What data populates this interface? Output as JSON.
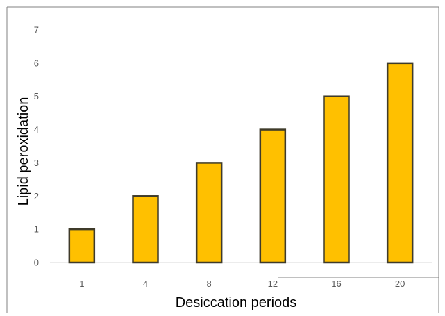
{
  "chart_data": {
    "type": "bar",
    "categories": [
      "1",
      "4",
      "8",
      "12",
      "16",
      "20"
    ],
    "values": [
      1,
      2,
      3,
      4,
      5,
      6
    ],
    "title": "",
    "xlabel": "Desiccation periods",
    "ylabel": "Lipid peroxidation",
    "ylim": [
      0,
      7
    ],
    "yticks": [
      "0",
      "1",
      "2",
      "3",
      "4",
      "5",
      "6",
      "7"
    ],
    "grid": false,
    "legend": "none",
    "colors": {
      "bar_fill": "#FFC000",
      "bar_stroke": "#3F3B2A",
      "tick_text": "#595959",
      "axis_line": "#D9D9D9"
    }
  }
}
